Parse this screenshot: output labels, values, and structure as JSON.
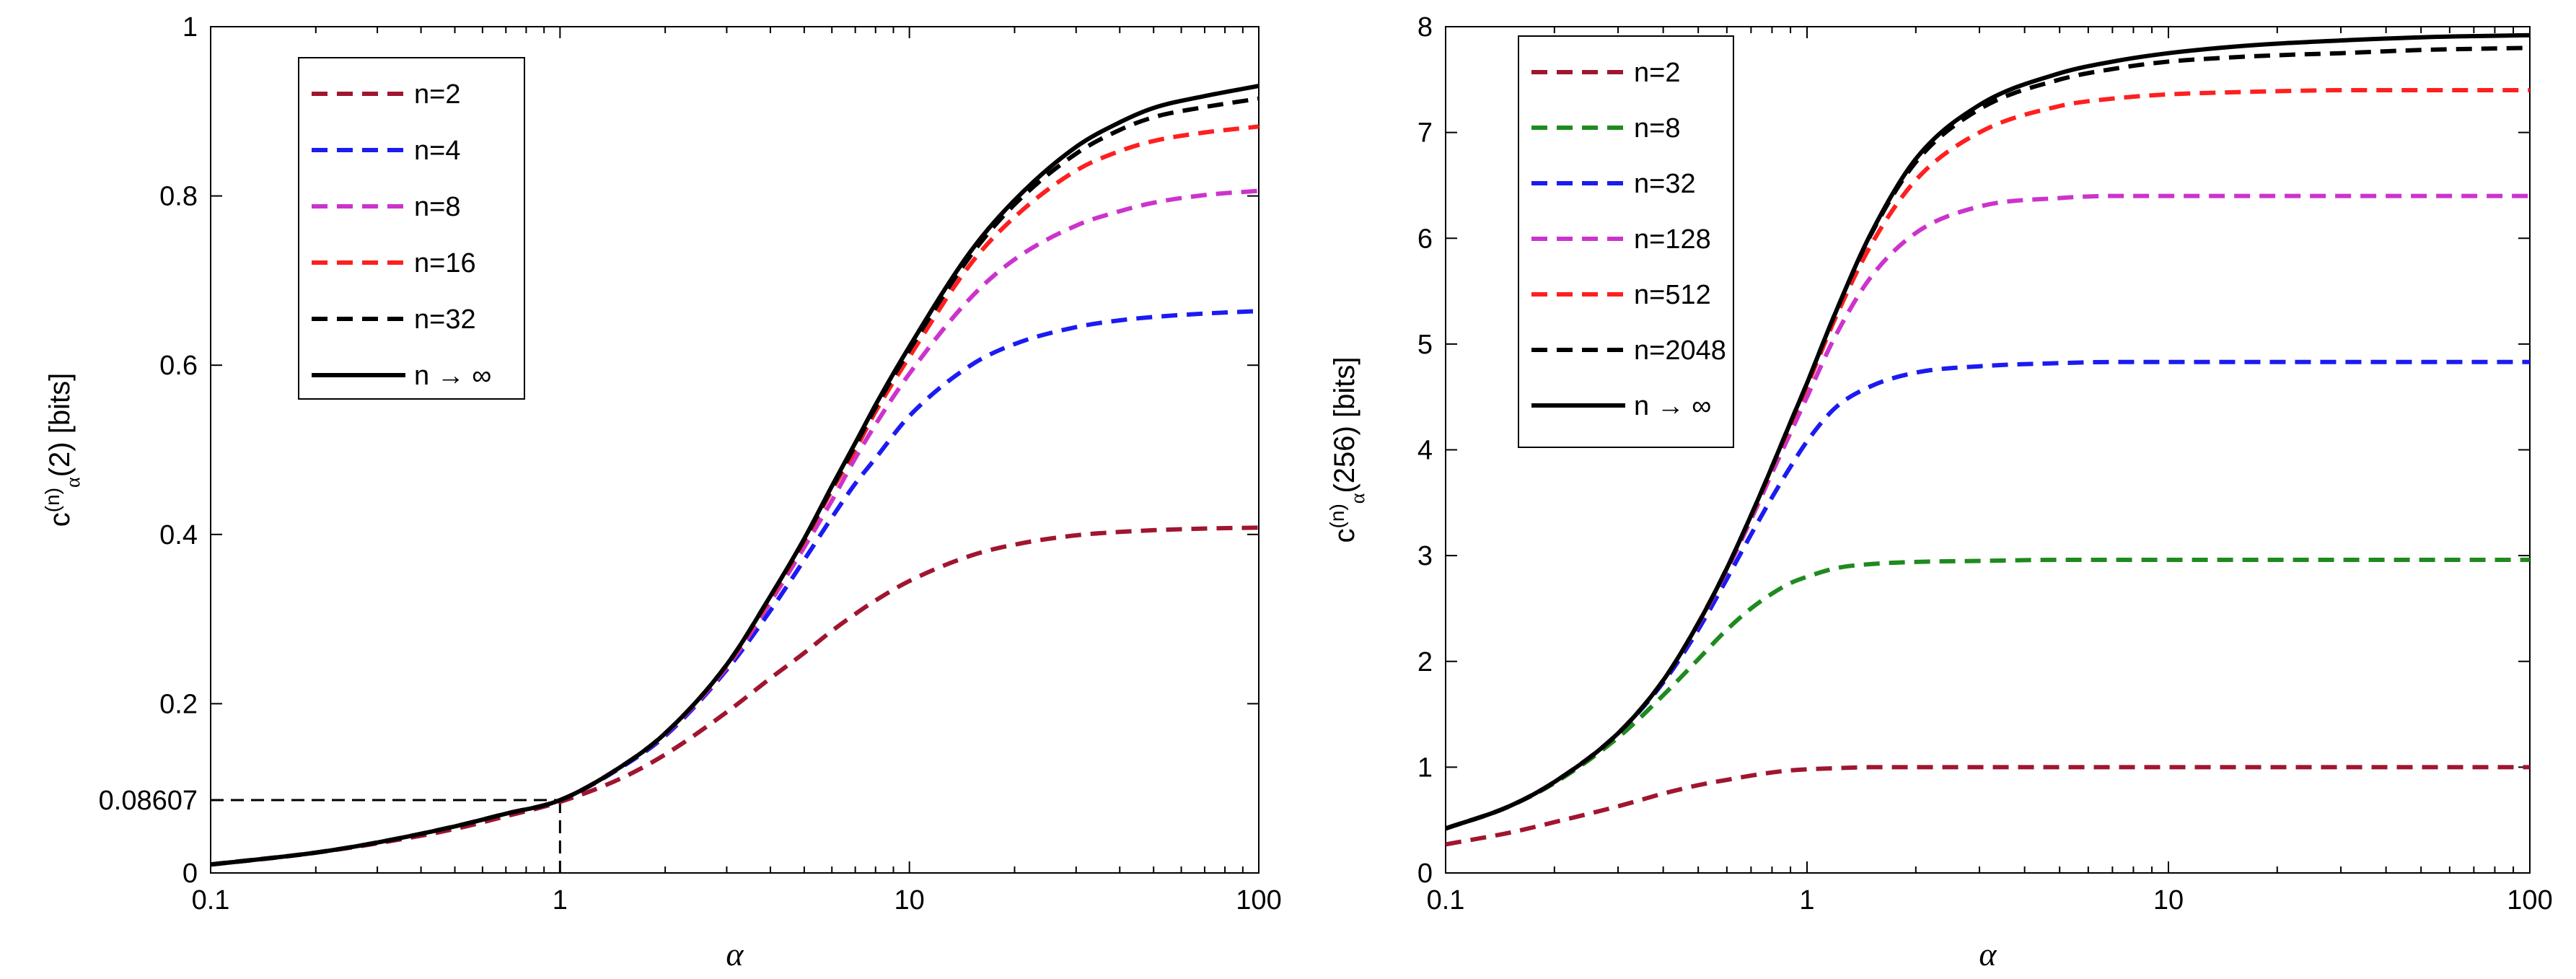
{
  "chart_data": [
    {
      "type": "line",
      "xscale": "log",
      "xlim": [
        0.1,
        100
      ],
      "ylim": [
        0,
        1
      ],
      "xticks": [
        "0.1",
        "1",
        "10",
        "100"
      ],
      "yticks": [
        "0",
        "0.2",
        "0.4",
        "0.6",
        "0.8",
        "1"
      ],
      "xlabel": "α",
      "ylabel": {
        "base": "c",
        "sup": "(n)",
        "sub": "α",
        "rest": "(2)  [bits]"
      },
      "legend_position": "top-left",
      "annotation": {
        "label": "0.08607",
        "x": 1,
        "y": 0.08607
      },
      "x": [
        0.1,
        0.2,
        0.3,
        0.5,
        0.7,
        1,
        1.5,
        2,
        3,
        4,
        5,
        6,
        7,
        8,
        10,
        15,
        20,
        30,
        40,
        50,
        70,
        100
      ],
      "series": [
        {
          "name": "n=2",
          "label": "n=2",
          "color": "#a0152f",
          "style": "dashed",
          "values": [
            0.01,
            0.024,
            0.035,
            0.052,
            0.067,
            0.084,
            0.112,
            0.14,
            0.19,
            0.23,
            0.26,
            0.286,
            0.306,
            0.322,
            0.345,
            0.375,
            0.388,
            0.399,
            0.403,
            0.405,
            0.407,
            0.408
          ]
        },
        {
          "name": "n=4",
          "label": "n=4",
          "color": "#1b1bf2",
          "style": "dashed",
          "values": [
            0.01,
            0.024,
            0.036,
            0.055,
            0.07,
            0.086,
            0.125,
            0.162,
            0.24,
            0.31,
            0.37,
            0.42,
            0.46,
            0.49,
            0.54,
            0.6,
            0.625,
            0.645,
            0.653,
            0.657,
            0.661,
            0.664
          ]
        },
        {
          "name": "n=8",
          "label": "n=8",
          "color": "#cc33cc",
          "style": "dashed",
          "values": [
            0.01,
            0.024,
            0.036,
            0.055,
            0.07,
            0.086,
            0.126,
            0.164,
            0.243,
            0.32,
            0.385,
            0.44,
            0.49,
            0.53,
            0.59,
            0.68,
            0.725,
            0.765,
            0.782,
            0.792,
            0.801,
            0.806
          ]
        },
        {
          "name": "n=16",
          "label": "n=16",
          "color": "#ff1f1f",
          "style": "dashed",
          "values": [
            0.01,
            0.024,
            0.036,
            0.055,
            0.07,
            0.086,
            0.126,
            0.165,
            0.245,
            0.325,
            0.392,
            0.452,
            0.5,
            0.545,
            0.61,
            0.72,
            0.775,
            0.83,
            0.853,
            0.865,
            0.875,
            0.882
          ]
        },
        {
          "name": "n=32",
          "label": "n=32",
          "color": "#000000",
          "style": "dashed",
          "values": [
            0.01,
            0.024,
            0.036,
            0.055,
            0.07,
            0.086,
            0.126,
            0.165,
            0.246,
            0.327,
            0.394,
            0.455,
            0.505,
            0.55,
            0.618,
            0.73,
            0.79,
            0.85,
            0.878,
            0.893,
            0.905,
            0.915
          ]
        },
        {
          "name": "n→∞",
          "label": "n → ∞",
          "color": "#000000",
          "style": "solid",
          "values": [
            0.01,
            0.024,
            0.036,
            0.055,
            0.07,
            0.086,
            0.126,
            0.165,
            0.246,
            0.327,
            0.395,
            0.457,
            0.508,
            0.553,
            0.622,
            0.735,
            0.795,
            0.858,
            0.887,
            0.904,
            0.918,
            0.93
          ]
        }
      ]
    },
    {
      "type": "line",
      "xscale": "log",
      "xlim": [
        0.1,
        100
      ],
      "ylim": [
        0,
        8
      ],
      "xticks": [
        "0.1",
        "1",
        "10",
        "100"
      ],
      "yticks": [
        "0",
        "1",
        "2",
        "3",
        "4",
        "5",
        "6",
        "7",
        "8"
      ],
      "xlabel": "α",
      "ylabel": {
        "base": "c",
        "sup": "(n)",
        "sub": "α",
        "rest": "(256)  [bits]"
      },
      "legend_position": "top-left",
      "x": [
        0.1,
        0.15,
        0.2,
        0.3,
        0.4,
        0.5,
        0.6,
        0.7,
        0.8,
        0.9,
        1,
        1.2,
        1.5,
        2,
        3,
        5,
        7,
        10,
        15,
        20,
        30,
        50,
        100
      ],
      "series": [
        {
          "name": "n=2",
          "label": "n=2",
          "color": "#a0152f",
          "style": "dashed",
          "values": [
            0.27,
            0.38,
            0.48,
            0.63,
            0.75,
            0.83,
            0.88,
            0.92,
            0.95,
            0.97,
            0.98,
            0.99,
            1.0,
            1.0,
            1.0,
            1.0,
            1.0,
            1.0,
            1.0,
            1.0,
            1.0,
            1.0,
            1.0
          ]
        },
        {
          "name": "n=8",
          "label": "n=8",
          "color": "#1f8a1f",
          "style": "dashed",
          "values": [
            0.42,
            0.63,
            0.85,
            1.28,
            1.68,
            2.02,
            2.3,
            2.5,
            2.64,
            2.74,
            2.8,
            2.88,
            2.92,
            2.94,
            2.95,
            2.96,
            2.96,
            2.96,
            2.96,
            2.96,
            2.96,
            2.96,
            2.96
          ]
        },
        {
          "name": "n=32",
          "label": "n=32",
          "color": "#1b1bf2",
          "style": "dashed",
          "values": [
            0.42,
            0.63,
            0.86,
            1.32,
            1.8,
            2.3,
            2.78,
            3.2,
            3.55,
            3.84,
            4.08,
            4.4,
            4.6,
            4.73,
            4.79,
            4.82,
            4.83,
            4.83,
            4.83,
            4.83,
            4.83,
            4.83,
            4.83
          ]
        },
        {
          "name": "n=128",
          "label": "n=128",
          "color": "#cc33cc",
          "style": "dashed",
          "values": [
            0.42,
            0.63,
            0.86,
            1.32,
            1.82,
            2.35,
            2.86,
            3.34,
            3.78,
            4.16,
            4.5,
            5.08,
            5.63,
            6.05,
            6.3,
            6.38,
            6.4,
            6.4,
            6.4,
            6.4,
            6.4,
            6.4,
            6.4
          ]
        },
        {
          "name": "n=512",
          "label": "n=512",
          "color": "#ff1f1f",
          "style": "dashed",
          "values": [
            0.42,
            0.63,
            0.86,
            1.32,
            1.82,
            2.36,
            2.88,
            3.37,
            3.83,
            4.24,
            4.6,
            5.25,
            5.93,
            6.55,
            7.0,
            7.25,
            7.32,
            7.36,
            7.38,
            7.39,
            7.4,
            7.4,
            7.4
          ]
        },
        {
          "name": "n=2048",
          "label": "n=2048",
          "color": "#000000",
          "style": "dashed",
          "values": [
            0.42,
            0.63,
            0.86,
            1.32,
            1.82,
            2.36,
            2.88,
            3.38,
            3.84,
            4.26,
            4.63,
            5.3,
            6.03,
            6.72,
            7.22,
            7.5,
            7.6,
            7.67,
            7.71,
            7.73,
            7.75,
            7.78,
            7.8
          ]
        },
        {
          "name": "n→∞",
          "label": "n → ∞",
          "color": "#000000",
          "style": "solid",
          "values": [
            0.42,
            0.63,
            0.86,
            1.32,
            1.82,
            2.36,
            2.88,
            3.38,
            3.84,
            4.26,
            4.63,
            5.3,
            6.04,
            6.75,
            7.26,
            7.56,
            7.67,
            7.75,
            7.81,
            7.84,
            7.87,
            7.9,
            7.92
          ]
        }
      ]
    }
  ]
}
